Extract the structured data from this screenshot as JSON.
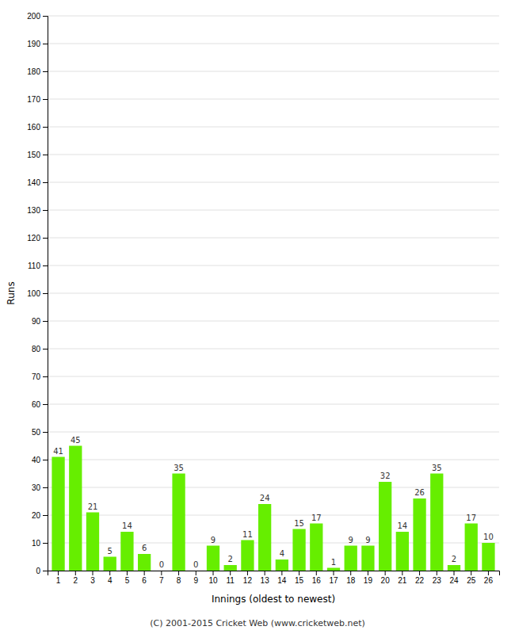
{
  "chart_data": {
    "type": "bar",
    "categories": [
      "1",
      "2",
      "3",
      "4",
      "5",
      "6",
      "7",
      "8",
      "9",
      "10",
      "11",
      "12",
      "13",
      "14",
      "15",
      "16",
      "17",
      "18",
      "19",
      "20",
      "21",
      "22",
      "23",
      "24",
      "25",
      "26"
    ],
    "values": [
      41,
      45,
      21,
      5,
      14,
      6,
      0,
      35,
      0,
      9,
      2,
      11,
      24,
      4,
      15,
      17,
      1,
      9,
      9,
      32,
      14,
      26,
      35,
      2,
      17,
      10
    ],
    "color": "#66ee00",
    "xlabel": "Innings (oldest to newest)",
    "ylabel": "Runs",
    "ylim": [
      0,
      200
    ],
    "yticks": [
      0,
      10,
      20,
      30,
      40,
      50,
      60,
      70,
      80,
      90,
      100,
      110,
      120,
      130,
      140,
      150,
      160,
      170,
      180,
      190,
      200
    ],
    "grid": true,
    "data_labels": true,
    "annotations": [
      "(C) 2001-2015 Cricket Web (www.cricketweb.net)"
    ]
  }
}
